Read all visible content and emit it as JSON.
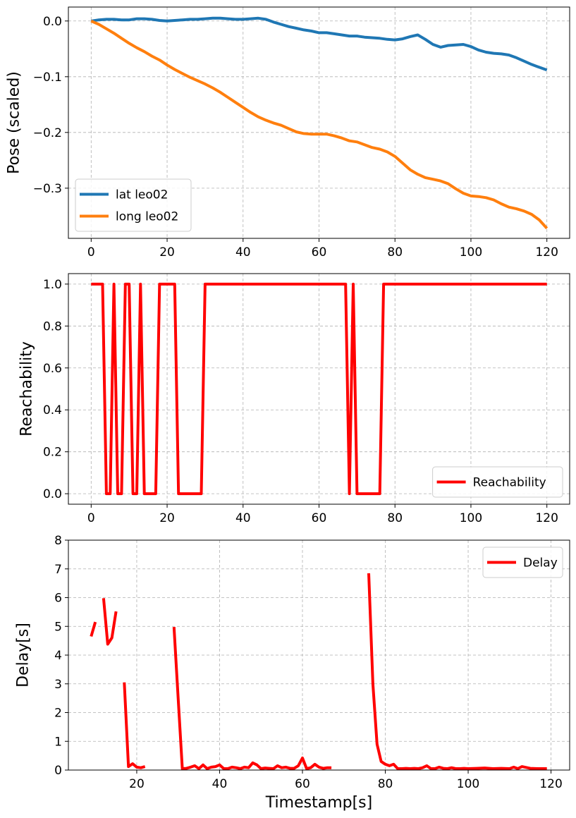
{
  "chart_data": [
    {
      "type": "line",
      "title": "",
      "xlabel": "",
      "ylabel": "Pose (scaled)",
      "xlim": [
        -6,
        126
      ],
      "ylim": [
        -0.39,
        0.025
      ],
      "xticks": [
        0,
        20,
        40,
        60,
        80,
        100,
        120
      ],
      "xtick_labels": [
        "0",
        "20",
        "40",
        "60",
        "80",
        "100",
        "120"
      ],
      "yticks": [
        0.0,
        -0.1,
        -0.2,
        -0.3
      ],
      "ytick_labels": [
        "0.0",
        "−0.1",
        "−0.2",
        "−0.3"
      ],
      "grid": true,
      "legend": "lower-left",
      "series": [
        {
          "name": "lat leo02",
          "color": "#1f77b4",
          "x": [
            0,
            2,
            4,
            6,
            8,
            10,
            12,
            14,
            16,
            18,
            20,
            22,
            24,
            26,
            28,
            30,
            32,
            34,
            36,
            38,
            40,
            42,
            44,
            46,
            48,
            50,
            52,
            54,
            56,
            58,
            60,
            62,
            64,
            66,
            68,
            70,
            72,
            74,
            76,
            78,
            80,
            82,
            84,
            86,
            88,
            90,
            92,
            94,
            96,
            98,
            100,
            102,
            104,
            106,
            108,
            110,
            112,
            114,
            116,
            118,
            120
          ],
          "y": [
            0.0,
            0.002,
            0.003,
            0.003,
            0.002,
            0.002,
            0.004,
            0.004,
            0.003,
            0.001,
            0.0,
            0.001,
            0.002,
            0.003,
            0.003,
            0.004,
            0.005,
            0.005,
            0.004,
            0.003,
            0.003,
            0.004,
            0.005,
            0.003,
            -0.002,
            -0.006,
            -0.01,
            -0.013,
            -0.016,
            -0.018,
            -0.021,
            -0.021,
            -0.023,
            -0.025,
            -0.027,
            -0.027,
            -0.029,
            -0.03,
            -0.031,
            -0.033,
            -0.034,
            -0.032,
            -0.028,
            -0.025,
            -0.033,
            -0.042,
            -0.047,
            -0.044,
            -0.043,
            -0.042,
            -0.046,
            -0.052,
            -0.056,
            -0.058,
            -0.059,
            -0.061,
            -0.066,
            -0.072,
            -0.078,
            -0.083,
            -0.088
          ]
        },
        {
          "name": "long leo02",
          "color": "#ff7f0e",
          "x": [
            0,
            2,
            4,
            6,
            8,
            10,
            12,
            14,
            16,
            18,
            20,
            22,
            24,
            26,
            28,
            30,
            32,
            34,
            36,
            38,
            40,
            42,
            44,
            46,
            48,
            50,
            52,
            54,
            56,
            58,
            60,
            62,
            64,
            66,
            68,
            70,
            72,
            74,
            76,
            78,
            80,
            82,
            84,
            86,
            88,
            90,
            92,
            94,
            96,
            98,
            100,
            102,
            104,
            106,
            108,
            110,
            112,
            114,
            116,
            118,
            120
          ],
          "y": [
            0.0,
            -0.006,
            -0.014,
            -0.022,
            -0.031,
            -0.04,
            -0.048,
            -0.055,
            -0.063,
            -0.07,
            -0.079,
            -0.087,
            -0.094,
            -0.101,
            -0.107,
            -0.113,
            -0.12,
            -0.128,
            -0.137,
            -0.146,
            -0.155,
            -0.164,
            -0.172,
            -0.178,
            -0.183,
            -0.187,
            -0.193,
            -0.199,
            -0.202,
            -0.203,
            -0.203,
            -0.203,
            -0.206,
            -0.21,
            -0.215,
            -0.217,
            -0.222,
            -0.227,
            -0.23,
            -0.235,
            -0.243,
            -0.255,
            -0.267,
            -0.275,
            -0.281,
            -0.284,
            -0.287,
            -0.292,
            -0.301,
            -0.309,
            -0.314,
            -0.315,
            -0.317,
            -0.321,
            -0.328,
            -0.334,
            -0.337,
            -0.341,
            -0.347,
            -0.357,
            -0.372
          ]
        }
      ]
    },
    {
      "type": "line",
      "title": "",
      "xlabel": "",
      "ylabel": "Reachability",
      "xlim": [
        -6,
        126
      ],
      "ylim": [
        -0.05,
        1.05
      ],
      "xticks": [
        0,
        20,
        40,
        60,
        80,
        100,
        120
      ],
      "xtick_labels": [
        "0",
        "20",
        "40",
        "60",
        "80",
        "100",
        "120"
      ],
      "yticks": [
        0.0,
        0.2,
        0.4,
        0.6,
        0.8,
        1.0
      ],
      "ytick_labels": [
        "0.0",
        "0.2",
        "0.4",
        "0.6",
        "0.8",
        "1.0"
      ],
      "grid": true,
      "legend": "lower-right",
      "series": [
        {
          "name": "Reachability",
          "color": "#ff0000",
          "x": [
            0,
            3,
            4,
            5,
            6,
            7,
            8,
            9,
            10,
            11,
            12,
            13,
            14,
            15,
            16,
            17,
            18,
            19,
            20,
            21,
            22,
            23,
            24,
            25,
            26,
            27,
            28,
            29,
            30,
            31,
            40,
            50,
            60,
            67,
            68,
            69,
            70,
            71,
            76,
            77,
            80,
            100,
            120
          ],
          "y": [
            1,
            1,
            0,
            0,
            1,
            0,
            0,
            1,
            1,
            0,
            0,
            1,
            0,
            0,
            0,
            0,
            1,
            1,
            1,
            1,
            1,
            0,
            0,
            0,
            0,
            0,
            0,
            0,
            1,
            1,
            1,
            1,
            1,
            1,
            0,
            1,
            0,
            0,
            0,
            1,
            1,
            1,
            1
          ]
        }
      ]
    },
    {
      "type": "line",
      "title": "",
      "xlabel": "Timestamp[s]",
      "ylabel": "Delay[s]",
      "xlim": [
        3.5,
        124.5
      ],
      "ylim": [
        0,
        8
      ],
      "xticks": [
        20,
        40,
        60,
        80,
        100,
        120
      ],
      "xtick_labels": [
        "20",
        "40",
        "60",
        "80",
        "100",
        "120"
      ],
      "yticks": [
        0,
        1,
        2,
        3,
        4,
        5,
        6,
        7,
        8
      ],
      "ytick_labels": [
        "0",
        "1",
        "2",
        "3",
        "4",
        "5",
        "6",
        "7",
        "8"
      ],
      "grid": true,
      "legend": "upper-right",
      "series": [
        {
          "name": "Delay",
          "color": "#ff0000",
          "segments": [
            {
              "x": [
                9,
                10
              ],
              "y": [
                4.65,
                5.15
              ]
            },
            {
              "x": [
                12,
                13,
                14,
                15
              ],
              "y": [
                5.98,
                4.38,
                4.6,
                5.52
              ]
            },
            {
              "x": [
                17,
                18,
                19,
                20,
                21,
                22
              ],
              "y": [
                3.05,
                0.12,
                0.22,
                0.1,
                0.08,
                0.12
              ]
            },
            {
              "x": [
                29,
                30,
                31,
                32,
                33,
                34,
                35,
                36,
                37,
                38,
                39,
                40,
                41,
                42,
                43,
                44,
                45,
                46,
                47,
                48,
                49,
                50,
                51,
                52,
                53,
                54,
                55,
                56,
                57,
                58,
                59,
                60,
                61,
                62,
                63,
                64,
                65,
                66,
                67
              ],
              "y": [
                4.98,
                2.5,
                0.05,
                0.06,
                0.1,
                0.15,
                0.05,
                0.18,
                0.05,
                0.1,
                0.12,
                0.18,
                0.05,
                0.05,
                0.1,
                0.08,
                0.05,
                0.1,
                0.08,
                0.25,
                0.18,
                0.05,
                0.07,
                0.06,
                0.05,
                0.15,
                0.08,
                0.1,
                0.06,
                0.06,
                0.15,
                0.42,
                0.05,
                0.08,
                0.2,
                0.1,
                0.06,
                0.08,
                0.08
              ]
            },
            {
              "x": [
                76,
                77,
                78,
                79,
                80,
                81,
                82,
                83,
                84,
                85,
                86,
                87,
                88,
                89,
                90,
                91,
                92,
                93,
                94,
                95,
                96,
                97,
                98,
                99,
                100,
                102,
                104,
                106,
                108,
                110,
                111,
                112,
                113,
                115,
                117,
                119
              ],
              "y": [
                6.85,
                3.0,
                0.9,
                0.3,
                0.2,
                0.15,
                0.2,
                0.05,
                0.05,
                0.06,
                0.05,
                0.06,
                0.05,
                0.08,
                0.15,
                0.05,
                0.05,
                0.1,
                0.06,
                0.05,
                0.08,
                0.05,
                0.05,
                0.06,
                0.05,
                0.06,
                0.07,
                0.05,
                0.06,
                0.05,
                0.1,
                0.05,
                0.12,
                0.06,
                0.05,
                0.05
              ]
            }
          ]
        }
      ]
    }
  ]
}
